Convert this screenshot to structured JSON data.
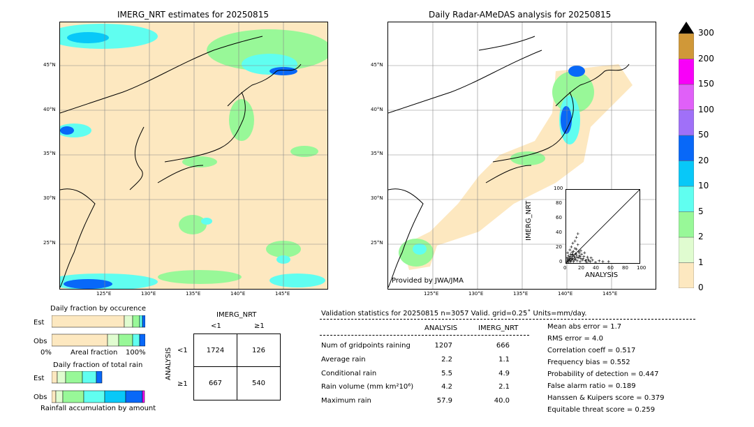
{
  "left_map": {
    "title": "IMERG_NRT estimates for 20250815",
    "lat_labels": [
      "45°N",
      "40°N",
      "35°N",
      "30°N",
      "25°N"
    ],
    "lon_labels": [
      "125°E",
      "130°E",
      "135°E",
      "140°E",
      "145°E"
    ]
  },
  "right_map": {
    "title": "Daily Radar-AMeDAS analysis for 20250815",
    "credit": "Provided by JWA/JMA",
    "lat_labels": [
      "45°N",
      "40°N",
      "35°N",
      "30°N",
      "25°N"
    ],
    "lon_labels": [
      "125°E",
      "130°E",
      "135°E",
      "140°E",
      "145°E"
    ]
  },
  "colorbar": {
    "levels": [
      "0",
      "1",
      "2",
      "5",
      "10",
      "20",
      "50",
      "100",
      "150",
      "200",
      "300"
    ],
    "colors": [
      "#fde8c0",
      "#e0fcd0",
      "#98f898",
      "#60fef0",
      "#08c8f8",
      "#0868f8",
      "#a070f8",
      "#e060f8",
      "#f800f8",
      "#d09838"
    ],
    "extend_color": "#000000"
  },
  "occurrence": {
    "title": "Daily fraction by occurence",
    "row_labels": [
      "Est",
      "Obs"
    ],
    "x_start": "0%",
    "x_mid": "Areal fraction",
    "x_end": "100%"
  },
  "total_rain": {
    "title": "Daily fraction of total rain",
    "row_labels": [
      "Est",
      "Obs"
    ],
    "xlabel": "Rainfall accumulation by amount"
  },
  "contingency": {
    "col_title": "IMERG_NRT",
    "col_labels": [
      "<1",
      "≥1"
    ],
    "row_title": "ANALYSIS",
    "row_labels": [
      "<1",
      "≥1"
    ],
    "cells": [
      "1724",
      "126",
      "667",
      "540"
    ]
  },
  "validation": {
    "header": "Validation statistics for 20250815  n=3057 Valid. grid=0.25˚ Units=mm/day.",
    "col_headers": [
      "ANALYSIS",
      "IMERG_NRT"
    ],
    "rows": [
      {
        "label": "Num of gridpoints raining",
        "analysis": "1207",
        "imerg": "666"
      },
      {
        "label": "Average rain",
        "analysis": "2.2",
        "imerg": "1.1"
      },
      {
        "label": "Conditional rain",
        "analysis": "5.5",
        "imerg": "4.9"
      },
      {
        "label": "Rain volume (mm km²10⁶)",
        "analysis": "4.2",
        "imerg": "2.1"
      },
      {
        "label": "Maximum rain",
        "analysis": "57.9",
        "imerg": "40.0"
      }
    ],
    "scores": [
      "Mean abs error =    1.7",
      "RMS error =    4.0",
      "Correlation coeff =  0.517",
      "Frequency bias =  0.552",
      "Probability of detection =  0.447",
      "False alarm ratio =  0.189",
      "Hanssen & Kuipers score =  0.379",
      "Equitable threat score =  0.259"
    ]
  },
  "chart_data": {
    "type": "scatter",
    "xlabel": "ANALYSIS",
    "ylabel": "IMERG_NRT",
    "xlim": [
      0,
      100
    ],
    "ylim": [
      0,
      100
    ],
    "xticks": [
      "0",
      "20",
      "40",
      "60",
      "80",
      "100"
    ],
    "yticks": [
      "0",
      "20",
      "40",
      "60",
      "80",
      "100"
    ],
    "points": [
      [
        1,
        2
      ],
      [
        2,
        5
      ],
      [
        3,
        1
      ],
      [
        4,
        8
      ],
      [
        5,
        3
      ],
      [
        6,
        12
      ],
      [
        7,
        4
      ],
      [
        8,
        15
      ],
      [
        9,
        6
      ],
      [
        10,
        2
      ],
      [
        11,
        9
      ],
      [
        12,
        20
      ],
      [
        13,
        5
      ],
      [
        14,
        11
      ],
      [
        15,
        3
      ],
      [
        16,
        25
      ],
      [
        17,
        7
      ],
      [
        18,
        14
      ],
      [
        19,
        2
      ],
      [
        20,
        6
      ],
      [
        22,
        4
      ],
      [
        24,
        9
      ],
      [
        26,
        3
      ],
      [
        28,
        1
      ],
      [
        30,
        5
      ],
      [
        33,
        2
      ],
      [
        36,
        4
      ],
      [
        40,
        1
      ],
      [
        45,
        3
      ],
      [
        50,
        2
      ],
      [
        57.9,
        2
      ],
      [
        3,
        10
      ],
      [
        5,
        18
      ],
      [
        7,
        22
      ],
      [
        9,
        27
      ],
      [
        12,
        30
      ],
      [
        14,
        35
      ],
      [
        16,
        40
      ],
      [
        2,
        14
      ],
      [
        4,
        6
      ],
      [
        6,
        9
      ],
      [
        8,
        11
      ],
      [
        10,
        16
      ],
      [
        12,
        7
      ],
      [
        14,
        19
      ],
      [
        18,
        10
      ],
      [
        20,
        17
      ],
      [
        1,
        7
      ],
      [
        2,
        3
      ],
      [
        3,
        4
      ],
      [
        5,
        6
      ],
      [
        6,
        2
      ],
      [
        8,
        5
      ],
      [
        9,
        12
      ],
      [
        11,
        4
      ],
      [
        13,
        13
      ],
      [
        15,
        8
      ],
      [
        17,
        16
      ],
      [
        19,
        9
      ],
      [
        21,
        12
      ],
      [
        23,
        6
      ],
      [
        25,
        14
      ],
      [
        27,
        4
      ],
      [
        29,
        8
      ],
      [
        31,
        3
      ],
      [
        34,
        7
      ]
    ]
  }
}
